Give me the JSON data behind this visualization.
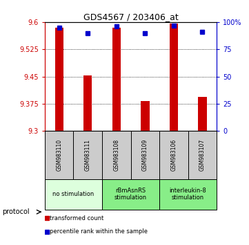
{
  "title": "GDS4567 / 203406_at",
  "samples": [
    "GSM983110",
    "GSM983111",
    "GSM983108",
    "GSM983109",
    "GSM983106",
    "GSM983107"
  ],
  "transformed_counts": [
    9.585,
    9.453,
    9.585,
    9.383,
    9.595,
    9.395
  ],
  "percentile_ranks": [
    95,
    90,
    96,
    90,
    97,
    91
  ],
  "y_min": 9.3,
  "y_max": 9.6,
  "y_ticks": [
    9.3,
    9.375,
    9.45,
    9.525,
    9.6
  ],
  "y_right_ticks": [
    0,
    25,
    50,
    75,
    100
  ],
  "bar_color": "#cc0000",
  "dot_color": "#0000cc",
  "groups": [
    {
      "label": "no stimulation",
      "start": 0,
      "end": 2,
      "color": "#ddffdd"
    },
    {
      "label": "rBmAsnRS\nstimulation",
      "start": 2,
      "end": 4,
      "color": "#88ee88"
    },
    {
      "label": "interleukin-8\nstimulation",
      "start": 4,
      "end": 6,
      "color": "#88ee88"
    }
  ],
  "sample_box_color": "#cccccc",
  "legend_items": [
    {
      "label": "transformed count",
      "color": "#cc0000"
    },
    {
      "label": "percentile rank within the sample",
      "color": "#0000cc"
    }
  ],
  "protocol_label": "protocol",
  "background_color": "#ffffff",
  "axis_left_color": "#cc0000",
  "axis_right_color": "#0000cc"
}
